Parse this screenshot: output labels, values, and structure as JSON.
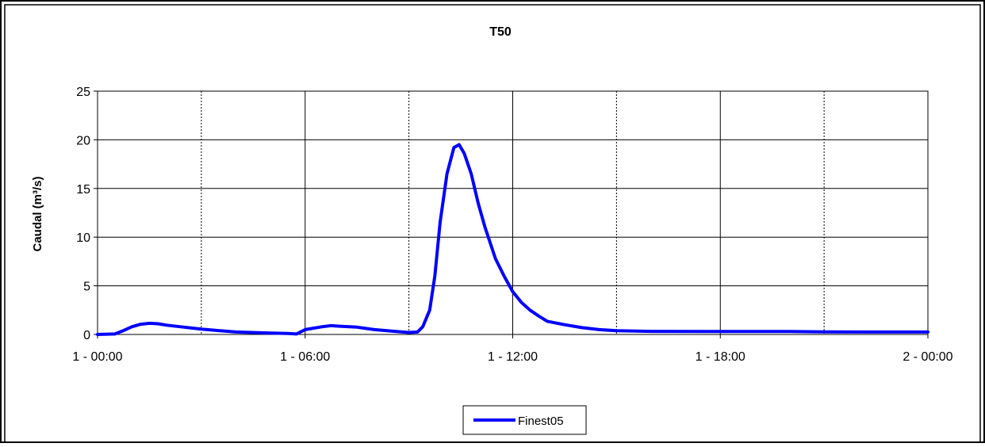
{
  "chart_data": {
    "type": "line",
    "title": "T50",
    "xlabel": "",
    "ylabel": "Caudal (m³/s)",
    "ylim": [
      0,
      25
    ],
    "yticks": [
      0,
      5,
      10,
      15,
      20,
      25
    ],
    "xlim_hours": [
      0,
      24
    ],
    "x_unit": "hours from day 1 00:00",
    "xticks": [
      {
        "hour": 0,
        "label": "1 -  00:00"
      },
      {
        "hour": 6,
        "label": "1 -  06:00"
      },
      {
        "hour": 12,
        "label": "1 -  12:00"
      },
      {
        "hour": 18,
        "label": "1 -  18:00"
      },
      {
        "hour": 24,
        "label": "2 -  00:00"
      }
    ],
    "major_grid_hours": [
      6,
      12,
      18
    ],
    "minor_grid_hours": [
      3,
      9,
      15,
      21
    ],
    "legend_position": "bottom",
    "series": [
      {
        "name": "Finest05",
        "color": "#0000ff",
        "points": [
          [
            0.0,
            0.0
          ],
          [
            0.5,
            0.05
          ],
          [
            0.75,
            0.4
          ],
          [
            1.0,
            0.8
          ],
          [
            1.25,
            1.05
          ],
          [
            1.5,
            1.15
          ],
          [
            1.75,
            1.1
          ],
          [
            2.0,
            0.95
          ],
          [
            2.5,
            0.75
          ],
          [
            3.0,
            0.55
          ],
          [
            3.5,
            0.4
          ],
          [
            4.0,
            0.25
          ],
          [
            5.0,
            0.15
          ],
          [
            5.5,
            0.1
          ],
          [
            5.75,
            0.05
          ],
          [
            6.0,
            0.5
          ],
          [
            6.5,
            0.8
          ],
          [
            6.75,
            0.9
          ],
          [
            7.0,
            0.85
          ],
          [
            7.5,
            0.75
          ],
          [
            8.0,
            0.5
          ],
          [
            8.5,
            0.35
          ],
          [
            9.0,
            0.2
          ],
          [
            9.25,
            0.25
          ],
          [
            9.4,
            0.8
          ],
          [
            9.6,
            2.5
          ],
          [
            9.75,
            6.0
          ],
          [
            9.9,
            11.5
          ],
          [
            10.1,
            16.5
          ],
          [
            10.3,
            19.2
          ],
          [
            10.45,
            19.5
          ],
          [
            10.6,
            18.6
          ],
          [
            10.8,
            16.5
          ],
          [
            11.0,
            13.5
          ],
          [
            11.2,
            11.0
          ],
          [
            11.5,
            7.8
          ],
          [
            11.75,
            6.0
          ],
          [
            12.0,
            4.4
          ],
          [
            12.25,
            3.3
          ],
          [
            12.5,
            2.5
          ],
          [
            12.75,
            1.9
          ],
          [
            13.0,
            1.35
          ],
          [
            13.5,
            1.0
          ],
          [
            14.0,
            0.7
          ],
          [
            14.5,
            0.5
          ],
          [
            15.0,
            0.38
          ],
          [
            16.0,
            0.32
          ],
          [
            18.0,
            0.3
          ],
          [
            20.0,
            0.3
          ],
          [
            21.0,
            0.27
          ],
          [
            22.0,
            0.25
          ],
          [
            24.0,
            0.25
          ]
        ]
      }
    ]
  }
}
